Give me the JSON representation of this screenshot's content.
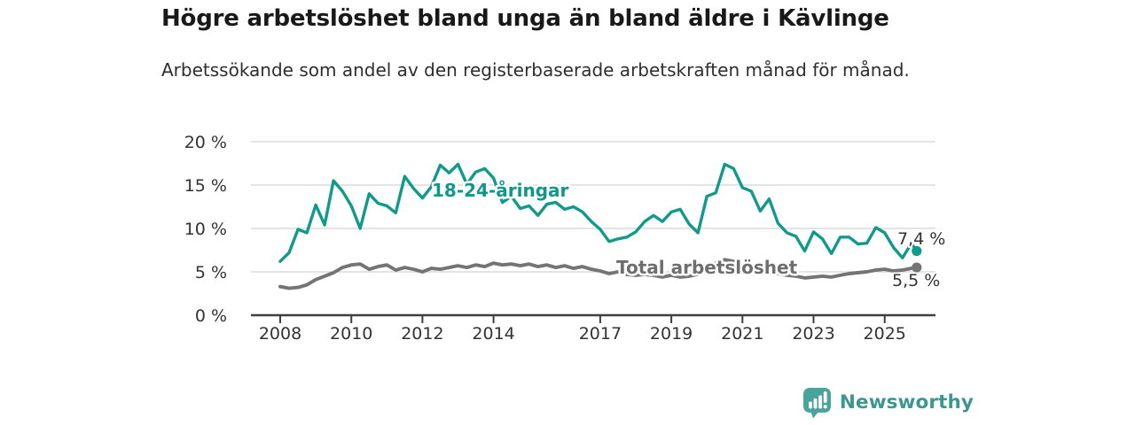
{
  "title": "Högre arbetslöshet bland unga än bland äldre i Kävlinge",
  "subtitle": "Arbetssökande som andel av den registerbaserade arbetskraften månad för månad.",
  "branding": {
    "logo_text": "Newsworthy",
    "logo_icon": "bar-chart-speech-bubble-icon"
  },
  "colors": {
    "young": "#119a8b",
    "young_label": "#0f978a",
    "total": "#747474",
    "total_label": "#6e6e6e",
    "grid": "#dcdcdc",
    "axis": "#3f3f3f",
    "text": "#333333",
    "brand_icon": "#49a49b",
    "brand_text": "#3e968f"
  },
  "chart_data": {
    "type": "line",
    "title": "Högre arbetslöshet bland unga än bland äldre i Kävlinge",
    "subtitle": "Arbetssökande som andel av den registerbaserade arbetskraften månad för månad.",
    "unit": "%",
    "xlabel": "",
    "ylabel": "",
    "xlim": [
      2007.2,
      2026.4
    ],
    "ylim": [
      0,
      20
    ],
    "grid": true,
    "legend": "inline-labels",
    "yticks": [
      0,
      5,
      10,
      15,
      20
    ],
    "ytick_labels": [
      "0 %",
      "5 %",
      "10 %",
      "15 %",
      "20 %"
    ],
    "xticks": [
      2008,
      2010,
      2012,
      2014,
      2017,
      2019,
      2021,
      2023,
      2025
    ],
    "xtick_labels": [
      "2008",
      "2010",
      "2012",
      "2014",
      "2017",
      "2019",
      "2021",
      "2023",
      "2025"
    ],
    "x": [
      2008.0,
      2008.25,
      2008.5,
      2008.75,
      2009.0,
      2009.25,
      2009.5,
      2009.75,
      2010.0,
      2010.25,
      2010.5,
      2010.75,
      2011.0,
      2011.25,
      2011.5,
      2011.75,
      2012.0,
      2012.25,
      2012.5,
      2012.75,
      2013.0,
      2013.25,
      2013.5,
      2013.75,
      2014.0,
      2014.25,
      2014.5,
      2014.75,
      2015.0,
      2015.25,
      2015.5,
      2015.75,
      2016.0,
      2016.25,
      2016.5,
      2016.75,
      2017.0,
      2017.25,
      2017.5,
      2017.75,
      2018.0,
      2018.25,
      2018.5,
      2018.75,
      2019.0,
      2019.25,
      2019.5,
      2019.75,
      2020.0,
      2020.25,
      2020.5,
      2020.75,
      2021.0,
      2021.25,
      2021.5,
      2021.75,
      2022.0,
      2022.25,
      2022.5,
      2022.75,
      2023.0,
      2023.25,
      2023.5,
      2023.75,
      2024.0,
      2024.25,
      2024.5,
      2024.75,
      2025.0,
      2025.25,
      2025.5,
      2025.75,
      2025.9
    ],
    "series": [
      {
        "name": "18-24-åringar",
        "color_key": "young",
        "label_color_key": "young_label",
        "end_label": "7,4 %",
        "end_value": 7.4,
        "values": [
          6.2,
          7.2,
          9.9,
          9.5,
          12.7,
          10.4,
          15.5,
          14.3,
          12.6,
          10.0,
          14.0,
          12.9,
          12.6,
          11.8,
          16.0,
          14.6,
          13.5,
          14.8,
          17.3,
          16.4,
          17.4,
          15.1,
          16.5,
          16.9,
          15.8,
          13.0,
          13.7,
          12.3,
          12.6,
          11.5,
          12.8,
          13.0,
          12.2,
          12.5,
          11.9,
          10.8,
          9.9,
          8.5,
          8.8,
          9.0,
          9.6,
          10.8,
          11.5,
          10.8,
          11.9,
          12.2,
          10.5,
          9.5,
          13.7,
          14.1,
          17.4,
          16.9,
          14.7,
          14.3,
          12.0,
          13.4,
          10.6,
          9.5,
          9.1,
          7.4,
          9.6,
          8.8,
          7.1,
          9.0,
          9.0,
          8.2,
          8.3,
          10.1,
          9.5,
          7.8,
          6.6,
          8.3,
          7.4
        ]
      },
      {
        "name": "Total arbetslöshet",
        "color_key": "total",
        "label_color_key": "total_label",
        "end_label": "5,5 %",
        "end_value": 5.5,
        "values": [
          3.3,
          3.1,
          3.2,
          3.5,
          4.1,
          4.5,
          4.9,
          5.5,
          5.8,
          5.9,
          5.3,
          5.6,
          5.8,
          5.2,
          5.5,
          5.3,
          5.0,
          5.4,
          5.3,
          5.5,
          5.7,
          5.5,
          5.8,
          5.6,
          6.0,
          5.8,
          5.9,
          5.7,
          5.9,
          5.6,
          5.8,
          5.5,
          5.7,
          5.4,
          5.6,
          5.3,
          5.1,
          4.8,
          5.0,
          4.7,
          4.6,
          4.7,
          4.6,
          4.4,
          4.6,
          4.4,
          4.5,
          4.7,
          5.1,
          6.0,
          6.4,
          6.2,
          5.8,
          5.5,
          5.2,
          5.0,
          4.8,
          4.6,
          4.5,
          4.3,
          4.4,
          4.5,
          4.4,
          4.6,
          4.8,
          4.9,
          5.0,
          5.2,
          5.3,
          5.1,
          5.2,
          5.4,
          5.5
        ]
      }
    ]
  }
}
